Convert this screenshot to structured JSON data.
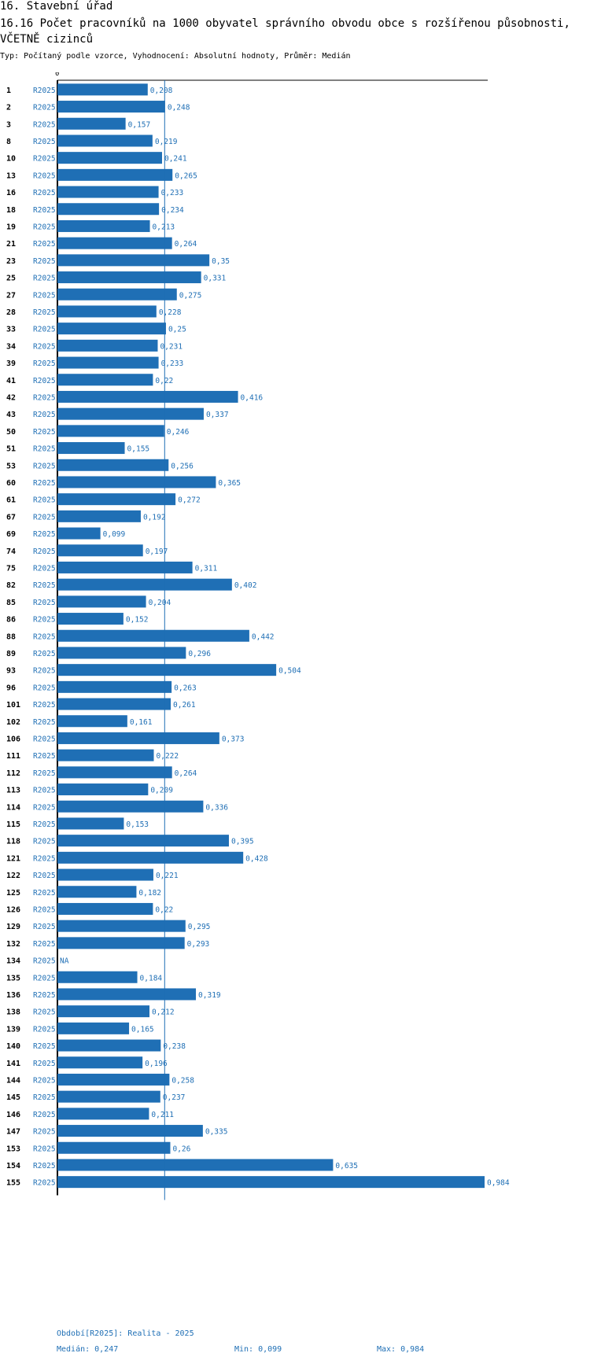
{
  "header": {
    "section": "16. Stavební úřad",
    "title": "16.16 Počet pracovníků na 1000 obyvatel správního obvodu obce s rozšířenou působnosti, VČETNĚ cizinců",
    "subtitle": "Typ: Počítaný podle vzorce, Vyhodnocení: Absolutní hodnoty, Průměr: Medián"
  },
  "chart_data": {
    "type": "bar",
    "orientation": "horizontal",
    "axis_zero_label": "0",
    "period": "R2025",
    "median": 0.247,
    "xlim": [
      0,
      0.984
    ],
    "bar_color": "#1f6fb5",
    "na_label": "NA",
    "categories": [
      "1",
      "2",
      "3",
      "8",
      "10",
      "13",
      "16",
      "18",
      "19",
      "21",
      "23",
      "25",
      "27",
      "28",
      "33",
      "34",
      "39",
      "41",
      "42",
      "43",
      "50",
      "51",
      "53",
      "60",
      "61",
      "67",
      "69",
      "74",
      "75",
      "82",
      "85",
      "86",
      "88",
      "89",
      "93",
      "96",
      "101",
      "102",
      "106",
      "111",
      "112",
      "113",
      "114",
      "115",
      "118",
      "121",
      "122",
      "125",
      "126",
      "129",
      "132",
      "134",
      "135",
      "136",
      "138",
      "139",
      "140",
      "141",
      "144",
      "145",
      "146",
      "147",
      "153",
      "154",
      "155"
    ],
    "values": [
      0.208,
      0.248,
      0.157,
      0.219,
      0.241,
      0.265,
      0.233,
      0.234,
      0.213,
      0.264,
      0.35,
      0.331,
      0.275,
      0.228,
      0.25,
      0.231,
      0.233,
      0.22,
      0.416,
      0.337,
      0.246,
      0.155,
      0.256,
      0.365,
      0.272,
      0.192,
      0.099,
      0.197,
      0.311,
      0.402,
      0.204,
      0.152,
      0.442,
      0.296,
      0.504,
      0.263,
      0.261,
      0.161,
      0.373,
      0.222,
      0.264,
      0.209,
      0.336,
      0.153,
      0.395,
      0.428,
      0.221,
      0.182,
      0.22,
      0.295,
      0.293,
      null,
      0.184,
      0.319,
      0.212,
      0.165,
      0.238,
      0.196,
      0.258,
      0.237,
      0.211,
      0.335,
      0.26,
      0.635,
      0.984
    ]
  },
  "footer": {
    "period_text": "Období[R2025]: Realita - 2025",
    "median_text": "Medián: 0,247",
    "min_text": "Min: 0,099",
    "max_text": "Max: 0,984"
  }
}
